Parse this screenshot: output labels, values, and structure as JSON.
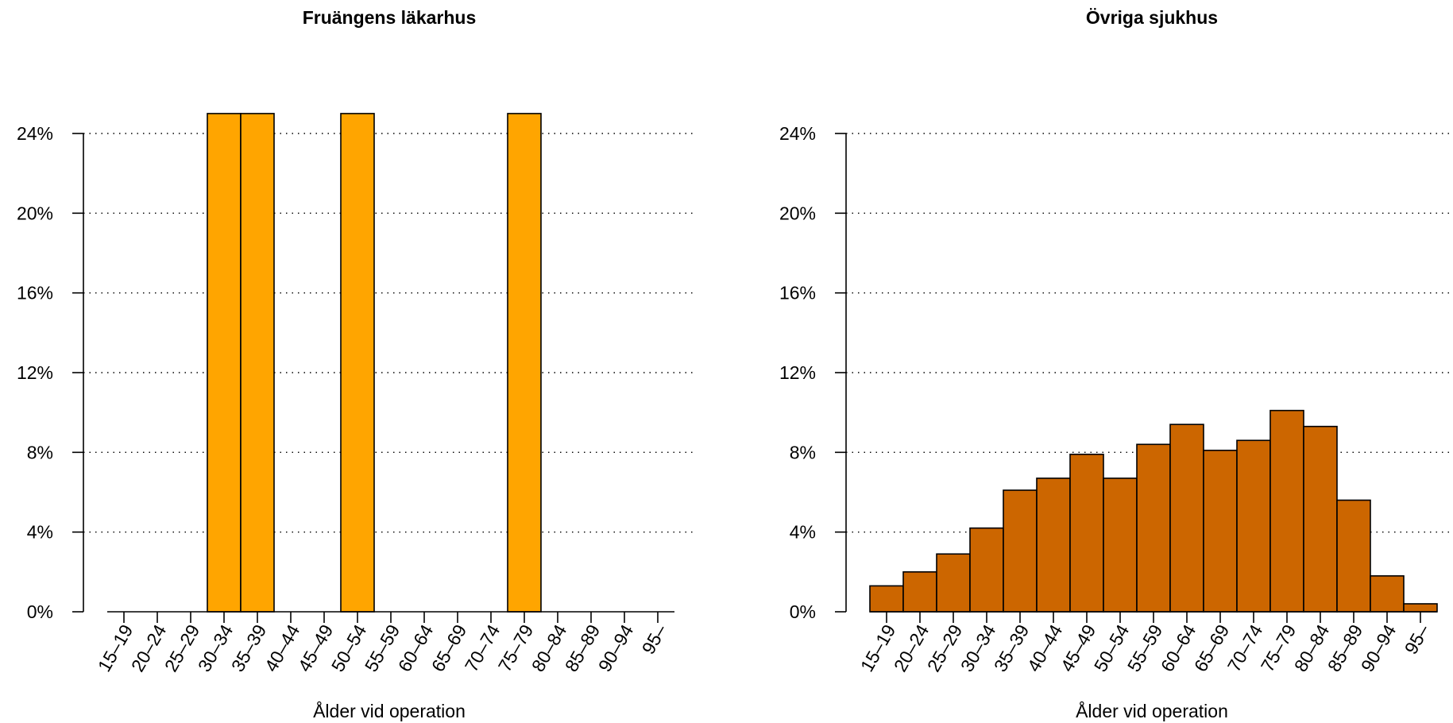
{
  "chart_data": [
    {
      "type": "bar",
      "title": "Fruängens läkarhus",
      "xlabel": "Ålder vid operation",
      "ylabel": "",
      "categories": [
        "15–19",
        "20–24",
        "25–29",
        "30–34",
        "35–39",
        "40–44",
        "45–49",
        "50–54",
        "55–59",
        "60–64",
        "65–69",
        "70–74",
        "75–79",
        "80–84",
        "85–89",
        "90–94",
        "95–"
      ],
      "values": [
        0,
        0,
        0,
        25,
        25,
        0,
        0,
        25,
        0,
        0,
        0,
        0,
        25,
        0,
        0,
        0,
        0
      ],
      "y_unit": "%",
      "ylim": [
        0,
        24
      ],
      "yticks": [
        "0%",
        "4%",
        "8%",
        "12%",
        "16%",
        "20%",
        "24%"
      ],
      "grid": true,
      "color": "#FFA500"
    },
    {
      "type": "bar",
      "title": "Övriga sjukhus",
      "xlabel": "Ålder vid operation",
      "ylabel": "",
      "categories": [
        "15–19",
        "20–24",
        "25–29",
        "30–34",
        "35–39",
        "40–44",
        "45–49",
        "50–54",
        "55–59",
        "60–64",
        "65–69",
        "70–74",
        "75–79",
        "80–84",
        "85–89",
        "90–94",
        "95–"
      ],
      "values": [
        1.3,
        2.0,
        2.9,
        4.2,
        6.1,
        6.7,
        7.9,
        6.7,
        8.4,
        9.4,
        8.1,
        8.6,
        10.1,
        9.3,
        5.6,
        1.8,
        0.4
      ],
      "y_unit": "%",
      "ylim": [
        0,
        24
      ],
      "yticks": [
        "0%",
        "4%",
        "8%",
        "12%",
        "16%",
        "20%",
        "24%"
      ],
      "grid": true,
      "color": "#CC6600"
    }
  ]
}
